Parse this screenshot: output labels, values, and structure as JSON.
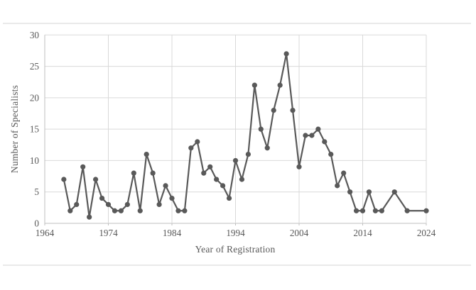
{
  "page": {
    "background": "#ffffff",
    "divider_color": "#e9e9e9"
  },
  "chart_data": {
    "type": "line",
    "title": "",
    "xlabel": "Year of Registration",
    "ylabel": "Number of Specialists",
    "x": [
      1967,
      1968,
      1969,
      1970,
      1971,
      1972,
      1973,
      1974,
      1975,
      1976,
      1977,
      1978,
      1979,
      1980,
      1981,
      1982,
      1983,
      1984,
      1985,
      1986,
      1987,
      1988,
      1989,
      1990,
      1991,
      1992,
      1993,
      1994,
      1995,
      1996,
      1997,
      1998,
      1999,
      2000,
      2001,
      2002,
      2003,
      2004,
      2005,
      2006,
      2007,
      2008,
      2009,
      2010,
      2011,
      2012,
      2013,
      2014,
      2015,
      2016,
      2017,
      2019,
      2021,
      2024
    ],
    "values": [
      7,
      2,
      3,
      9,
      1,
      7,
      4,
      3,
      2,
      2,
      3,
      8,
      2,
      11,
      8,
      3,
      6,
      4,
      2,
      2,
      12,
      13,
      8,
      9,
      7,
      6,
      4,
      10,
      7,
      11,
      22,
      15,
      12,
      18,
      22,
      27,
      18,
      9,
      14,
      14,
      15,
      13,
      11,
      6,
      8,
      5,
      2,
      2,
      5,
      2,
      2,
      5,
      2,
      2
    ],
    "xlim": [
      1964,
      2024
    ],
    "ylim": [
      0,
      30
    ],
    "x_ticks": [
      1964,
      1974,
      1984,
      1994,
      2004,
      2014,
      2024
    ],
    "y_ticks": [
      0,
      5,
      10,
      15,
      20,
      25,
      30
    ],
    "grid": true,
    "legend": "none",
    "marker": "circle",
    "line_color": "#595959",
    "marker_color": "#595959",
    "gridline_color": "#d9d9d9",
    "axis_line_color": "#bfbfbf",
    "text_color": "#595959"
  }
}
